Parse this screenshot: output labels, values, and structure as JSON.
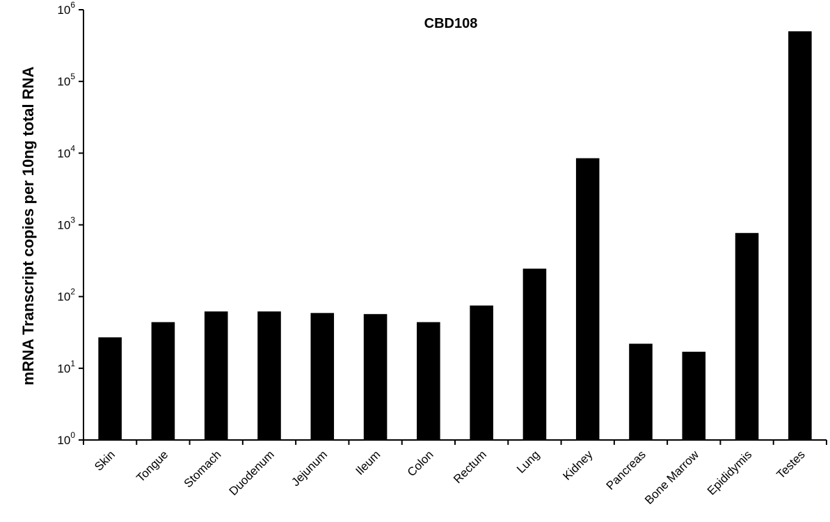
{
  "chart_data": {
    "type": "bar",
    "title": "CBD108",
    "xlabel": "",
    "ylabel": "mRNA Transcript copies per 10ng total RNA",
    "yscale": "log",
    "ylim": [
      1,
      1000000
    ],
    "yticks": [
      {
        "base": "10",
        "exp": "0"
      },
      {
        "base": "10",
        "exp": "1"
      },
      {
        "base": "10",
        "exp": "2"
      },
      {
        "base": "10",
        "exp": "3"
      },
      {
        "base": "10",
        "exp": "4"
      },
      {
        "base": "10",
        "exp": "5"
      },
      {
        "base": "10",
        "exp": "6"
      }
    ],
    "categories": [
      "Skin",
      "Tongue",
      "Stomach",
      "Duodenum",
      "Jejunum",
      "Ileum",
      "Colon",
      "Rectum",
      "Lung",
      "Kidney",
      "Pancreas",
      "Bone Marrow",
      "Epididymis",
      "Testes"
    ],
    "values": [
      27,
      44,
      62,
      62,
      59,
      57,
      44,
      75,
      245,
      8500,
      22,
      17,
      770,
      500000
    ],
    "bar_color": "#000000",
    "grid": false,
    "legend": "none"
  }
}
